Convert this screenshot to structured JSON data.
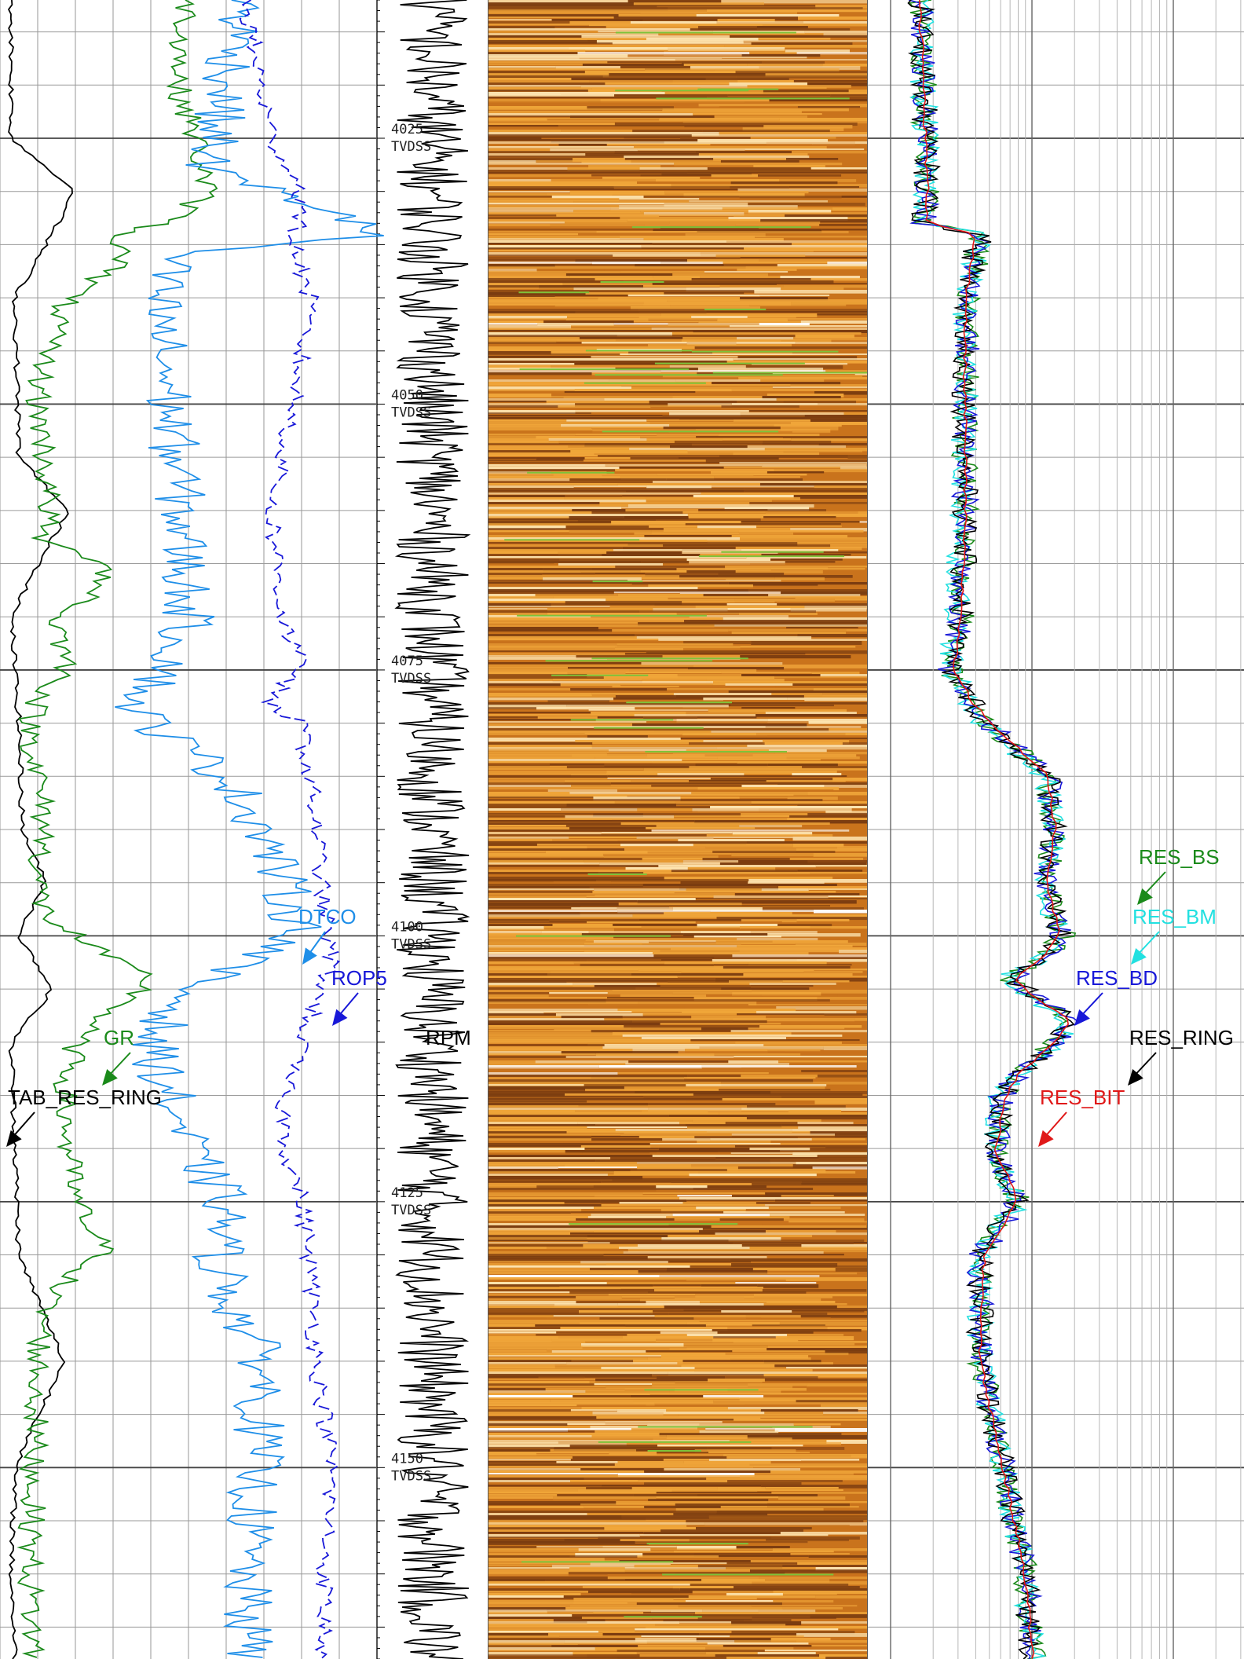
{
  "chart_data": {
    "type": "line",
    "title": "",
    "depth_axis": {
      "unit_label": "TVDSS",
      "range": [
        4012,
        4168
      ],
      "depth_labels": [
        {
          "value": 4025,
          "text": "4025"
        },
        {
          "value": 4050,
          "text": "4050"
        },
        {
          "value": 4075,
          "text": "4075"
        },
        {
          "value": 4100,
          "text": "4100"
        },
        {
          "value": 4125,
          "text": "4125"
        },
        {
          "value": 4150,
          "text": "4150"
        }
      ]
    },
    "tracks": [
      {
        "name": "track-1",
        "grid": true,
        "series": [
          {
            "name": "TAB_RES_RING",
            "color": "#000000",
            "label": "TAB_RES_RING",
            "depths": [
              4012,
              4025,
              4030,
              4040,
              4055,
              4060,
              4070,
              4080,
              4090,
              4095,
              4100,
              4105,
              4110,
              4120,
              4130,
              4140,
              4150,
              4160,
              4168
            ],
            "values": [
              0.03,
              0.03,
              0.2,
              0.04,
              0.05,
              0.18,
              0.03,
              0.05,
              0.06,
              0.12,
              0.05,
              0.14,
              0.03,
              0.04,
              0.05,
              0.17,
              0.04,
              0.03,
              0.04
            ]
          },
          {
            "name": "GR",
            "color": "#1a8a1a",
            "label": "GR",
            "depths": [
              4012,
              4020,
              4025,
              4030,
              4033,
              4034,
              4036,
              4040,
              4045,
              4050,
              4055,
              4060,
              4063,
              4065,
              4068,
              4070,
              4075,
              4078,
              4080,
              4085,
              4090,
              4095,
              4098,
              4100,
              4102,
              4104,
              4106,
              4108,
              4110,
              4115,
              4120,
              4125,
              4128,
              4130,
              4133,
              4135,
              4140,
              4150,
              4160,
              4168
            ],
            "values": [
              0.5,
              0.47,
              0.52,
              0.55,
              0.45,
              0.3,
              0.35,
              0.18,
              0.12,
              0.1,
              0.12,
              0.13,
              0.11,
              0.3,
              0.25,
              0.15,
              0.18,
              0.1,
              0.08,
              0.1,
              0.12,
              0.1,
              0.12,
              0.2,
              0.28,
              0.4,
              0.35,
              0.25,
              0.2,
              0.17,
              0.18,
              0.2,
              0.25,
              0.28,
              0.15,
              0.12,
              0.1,
              0.09,
              0.08,
              0.09
            ]
          }
        ]
      },
      {
        "name": "track-1-sonic",
        "grid": false,
        "series": [
          {
            "name": "DTCO",
            "color": "#1e8ee8",
            "label": "DTCO",
            "depths": [
              4012,
              4020,
              4028,
              4032,
              4034,
              4036,
              4040,
              4050,
              4060,
              4070,
              4075,
              4078,
              4080,
              4085,
              4090,
              4095,
              4100,
              4103,
              4105,
              4110,
              4115,
              4120,
              4125,
              4130,
              4135,
              4140,
              4150,
              4160,
              4168
            ],
            "values": [
              0.65,
              0.6,
              0.55,
              0.9,
              1.0,
              0.45,
              0.42,
              0.45,
              0.48,
              0.5,
              0.45,
              0.35,
              0.4,
              0.6,
              0.7,
              0.75,
              0.8,
              0.6,
              0.5,
              0.4,
              0.45,
              0.5,
              0.6,
              0.58,
              0.62,
              0.7,
              0.68,
              0.65,
              0.66
            ]
          },
          {
            "name": "ROP5",
            "color": "#1818d8",
            "label": "ROP5",
            "depths": [
              4012,
              4018,
              4025,
              4030,
              4035,
              4040,
              4050,
              4060,
              4070,
              4075,
              4078,
              4080,
              4085,
              4090,
              4095,
              4100,
              4103,
              4105,
              4110,
              4115,
              4120,
              4125,
              4130,
              4140,
              4150,
              4160,
              4168
            ],
            "values": [
              0.65,
              0.68,
              0.72,
              0.8,
              0.78,
              0.82,
              0.78,
              0.72,
              0.75,
              0.8,
              0.7,
              0.8,
              0.82,
              0.84,
              0.85,
              0.87,
              0.88,
              0.85,
              0.8,
              0.75,
              0.76,
              0.8,
              0.82,
              0.84,
              0.88,
              0.86,
              0.86
            ]
          }
        ]
      },
      {
        "name": "track-2-rpm",
        "grid": false,
        "series": [
          {
            "name": "RPM",
            "color": "#000000",
            "label": "RPM",
            "depths": [
              4012,
              4168
            ],
            "values": [
              0.5,
              0.5
            ]
          }
        ]
      },
      {
        "name": "track-3-image",
        "type": "heatmap",
        "colors": [
          "#7a3c10",
          "#c9731c",
          "#f0a63a",
          "#fde4b0",
          "#ffffff",
          "#7ec23a"
        ]
      },
      {
        "name": "track-4-resistivity",
        "scale": "log",
        "grid": true,
        "series": [
          {
            "name": "RES_BS",
            "color": "#1a8a1a",
            "label": "RES_BS",
            "depths": [
              4012,
              4020,
              4030,
              4033,
              4034,
              4040,
              4050,
              4060,
              4070,
              4075,
              4078,
              4080,
              4085,
              4090,
              4095,
              4100,
              4102,
              4104,
              4106,
              4108,
              4110,
              4113,
              4115,
              4120,
              4125,
              4130,
              4140,
              4150,
              4160,
              4168
            ],
            "values": [
              0.14,
              0.15,
              0.16,
              0.15,
              0.3,
              0.27,
              0.26,
              0.26,
              0.25,
              0.22,
              0.28,
              0.32,
              0.48,
              0.5,
              0.47,
              0.52,
              0.47,
              0.38,
              0.45,
              0.55,
              0.5,
              0.4,
              0.36,
              0.34,
              0.4,
              0.3,
              0.3,
              0.36,
              0.42,
              0.44
            ]
          },
          {
            "name": "RES_BM",
            "color": "#22e0e0",
            "label": "RES_BM",
            "depths": [
              4012,
              4020,
              4030,
              4033,
              4034,
              4040,
              4050,
              4060,
              4070,
              4075,
              4078,
              4080,
              4085,
              4090,
              4095,
              4100,
              4102,
              4104,
              4106,
              4108,
              4110,
              4113,
              4115,
              4120,
              4125,
              4130,
              4140,
              4150,
              4160,
              4168
            ],
            "values": [
              0.14,
              0.15,
              0.16,
              0.15,
              0.3,
              0.26,
              0.26,
              0.25,
              0.24,
              0.22,
              0.27,
              0.31,
              0.47,
              0.5,
              0.47,
              0.51,
              0.46,
              0.37,
              0.45,
              0.54,
              0.5,
              0.4,
              0.35,
              0.34,
              0.4,
              0.3,
              0.3,
              0.36,
              0.42,
              0.44
            ]
          },
          {
            "name": "RES_BD",
            "color": "#1818d8",
            "label": "RES_BD",
            "depths": [
              4012,
              4020,
              4030,
              4033,
              4034,
              4040,
              4050,
              4060,
              4070,
              4075,
              4078,
              4080,
              4085,
              4090,
              4095,
              4100,
              4102,
              4104,
              4106,
              4108,
              4110,
              4113,
              4115,
              4120,
              4125,
              4130,
              4140,
              4150,
              4160,
              4168
            ],
            "values": [
              0.14,
              0.15,
              0.16,
              0.15,
              0.3,
              0.27,
              0.26,
              0.26,
              0.25,
              0.22,
              0.28,
              0.32,
              0.48,
              0.5,
              0.47,
              0.52,
              0.47,
              0.38,
              0.45,
              0.55,
              0.5,
              0.4,
              0.36,
              0.34,
              0.4,
              0.3,
              0.3,
              0.36,
              0.42,
              0.44
            ]
          },
          {
            "name": "RES_RING",
            "color": "#000000",
            "label": "RES_RING",
            "depths": [
              4012,
              4020,
              4030,
              4033,
              4034,
              4040,
              4050,
              4060,
              4070,
              4075,
              4078,
              4080,
              4085,
              4090,
              4095,
              4100,
              4102,
              4104,
              4106,
              4108,
              4110,
              4113,
              4115,
              4120,
              4125,
              4130,
              4140,
              4150,
              4160,
              4168
            ],
            "values": [
              0.14,
              0.15,
              0.16,
              0.15,
              0.3,
              0.26,
              0.26,
              0.26,
              0.25,
              0.22,
              0.28,
              0.32,
              0.48,
              0.5,
              0.47,
              0.51,
              0.47,
              0.38,
              0.45,
              0.55,
              0.5,
              0.4,
              0.36,
              0.34,
              0.4,
              0.3,
              0.3,
              0.36,
              0.42,
              0.44
            ]
          },
          {
            "name": "RES_BIT",
            "color": "#e01818",
            "label": "RES_BIT",
            "depths": [
              4012,
              4020,
              4030,
              4033,
              4034,
              4040,
              4050,
              4060,
              4070,
              4075,
              4078,
              4080,
              4085,
              4090,
              4095,
              4100,
              4102,
              4104,
              4106,
              4108,
              4110,
              4113,
              4115,
              4120,
              4125,
              4130,
              4140,
              4150,
              4160,
              4168
            ],
            "values": [
              0.14,
              0.15,
              0.16,
              0.16,
              0.29,
              0.26,
              0.26,
              0.26,
              0.25,
              0.23,
              0.28,
              0.33,
              0.48,
              0.5,
              0.48,
              0.51,
              0.47,
              0.39,
              0.45,
              0.54,
              0.5,
              0.4,
              0.37,
              0.34,
              0.4,
              0.31,
              0.3,
              0.36,
              0.42,
              0.44
            ]
          }
        ]
      }
    ],
    "annotations": [
      {
        "text": "DTCO",
        "color": "#1e8ee8",
        "depth": 4099,
        "series": "DTCO"
      },
      {
        "text": "ROP5",
        "color": "#1818d8",
        "depth": 4105,
        "series": "ROP5"
      },
      {
        "text": "GR",
        "color": "#1a8a1a",
        "depth": 4110,
        "series": "GR"
      },
      {
        "text": "TAB_RES_RING",
        "color": "#000000",
        "depth": 4116,
        "series": "TAB_RES_RING"
      },
      {
        "text": "RPM",
        "color": "#000000",
        "depth": 4110,
        "series": "RPM"
      },
      {
        "text": "RES_BS",
        "color": "#1a8a1a",
        "depth": 4093,
        "series": "RES_BS"
      },
      {
        "text": "RES_BM",
        "color": "#22e0e0",
        "depth": 4099,
        "series": "RES_BM"
      },
      {
        "text": "RES_BD",
        "color": "#1818d8",
        "depth": 4105,
        "series": "RES_BD"
      },
      {
        "text": "RES_RING",
        "color": "#000000",
        "depth": 4111,
        "series": "RES_RING"
      },
      {
        "text": "RES_BIT",
        "color": "#e01818",
        "depth": 4116,
        "series": "RES_BIT"
      }
    ]
  }
}
